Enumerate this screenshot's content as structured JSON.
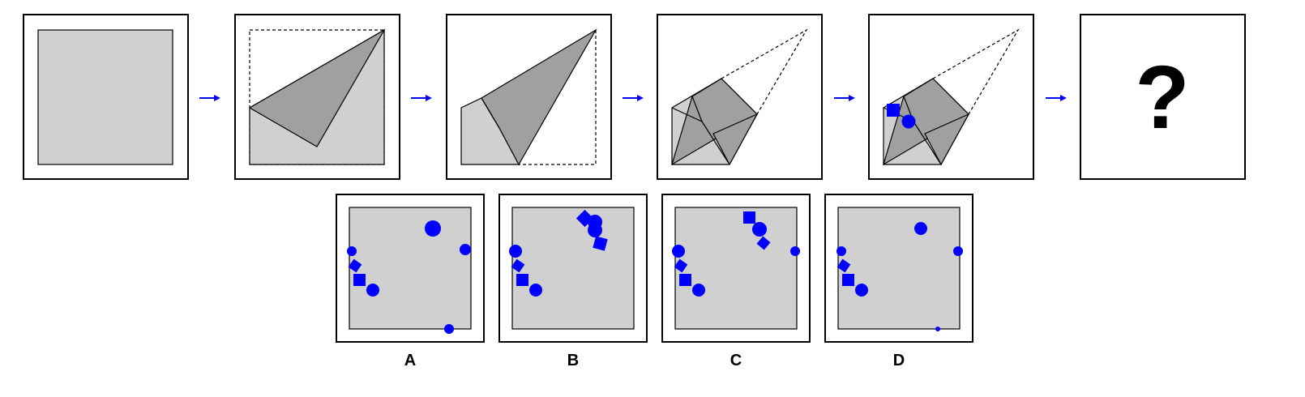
{
  "colors": {
    "paper": "#d0d0d0",
    "folded_flap": "#a0a0a0",
    "panel_bg": "#ffffff",
    "outline": "#000000",
    "arrow": "#0000ff",
    "hole": "#0000ff"
  },
  "question": {
    "mark": "?"
  },
  "options": [
    {
      "label": "A"
    },
    {
      "label": "B"
    },
    {
      "label": "C"
    },
    {
      "label": "D"
    }
  ]
}
